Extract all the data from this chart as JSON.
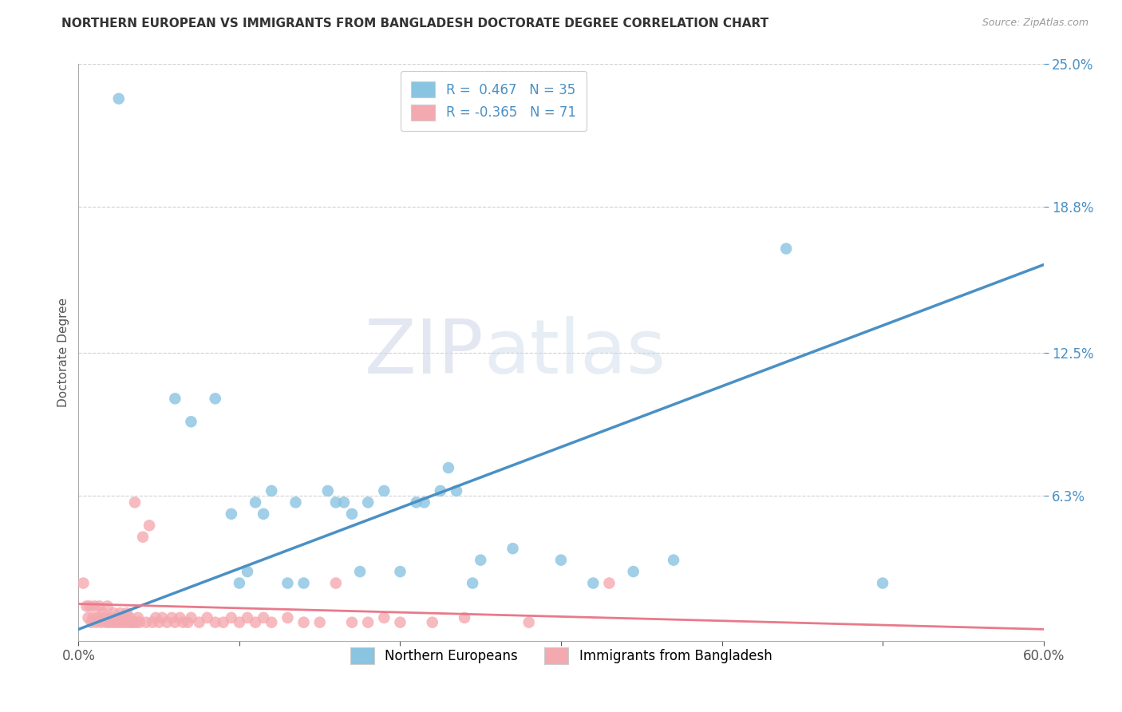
{
  "title": "NORTHERN EUROPEAN VS IMMIGRANTS FROM BANGLADESH DOCTORATE DEGREE CORRELATION CHART",
  "source": "Source: ZipAtlas.com",
  "ylabel": "Doctorate Degree",
  "xmin": 0.0,
  "xmax": 0.6,
  "ymin": 0.0,
  "ymax": 0.25,
  "R_blue": 0.467,
  "N_blue": 35,
  "R_pink": -0.365,
  "N_pink": 71,
  "blue_color": "#89c4e1",
  "pink_color": "#f4a9b0",
  "blue_line_color": "#4a90c4",
  "pink_line_color": "#e87a8a",
  "watermark_zip": "ZIP",
  "watermark_atlas": "atlas",
  "background_color": "#ffffff",
  "grid_color": "#cccccc",
  "x_legend_labels": [
    "Northern Europeans",
    "Immigrants from Bangladesh"
  ],
  "blue_scatter_x": [
    0.025,
    0.06,
    0.07,
    0.085,
    0.095,
    0.1,
    0.105,
    0.11,
    0.115,
    0.12,
    0.13,
    0.135,
    0.14,
    0.155,
    0.16,
    0.165,
    0.17,
    0.175,
    0.18,
    0.19,
    0.2,
    0.21,
    0.215,
    0.225,
    0.23,
    0.235,
    0.245,
    0.25,
    0.27,
    0.3,
    0.32,
    0.345,
    0.37,
    0.44,
    0.5
  ],
  "blue_scatter_y": [
    0.235,
    0.105,
    0.095,
    0.105,
    0.055,
    0.025,
    0.03,
    0.06,
    0.055,
    0.065,
    0.025,
    0.06,
    0.025,
    0.065,
    0.06,
    0.06,
    0.055,
    0.03,
    0.06,
    0.065,
    0.03,
    0.06,
    0.06,
    0.065,
    0.075,
    0.065,
    0.025,
    0.035,
    0.04,
    0.035,
    0.025,
    0.03,
    0.035,
    0.17,
    0.025
  ],
  "pink_scatter_x": [
    0.003,
    0.005,
    0.006,
    0.007,
    0.008,
    0.009,
    0.01,
    0.011,
    0.012,
    0.013,
    0.014,
    0.015,
    0.016,
    0.017,
    0.018,
    0.019,
    0.02,
    0.021,
    0.022,
    0.023,
    0.024,
    0.025,
    0.026,
    0.027,
    0.028,
    0.029,
    0.03,
    0.031,
    0.032,
    0.033,
    0.034,
    0.035,
    0.036,
    0.037,
    0.038,
    0.04,
    0.042,
    0.044,
    0.046,
    0.048,
    0.05,
    0.052,
    0.055,
    0.058,
    0.06,
    0.063,
    0.065,
    0.068,
    0.07,
    0.075,
    0.08,
    0.085,
    0.09,
    0.095,
    0.1,
    0.105,
    0.11,
    0.115,
    0.12,
    0.13,
    0.14,
    0.15,
    0.16,
    0.17,
    0.18,
    0.19,
    0.2,
    0.22,
    0.24,
    0.28,
    0.33
  ],
  "pink_scatter_y": [
    0.025,
    0.015,
    0.01,
    0.015,
    0.008,
    0.01,
    0.015,
    0.008,
    0.01,
    0.015,
    0.008,
    0.012,
    0.01,
    0.008,
    0.015,
    0.008,
    0.01,
    0.008,
    0.012,
    0.008,
    0.01,
    0.008,
    0.012,
    0.008,
    0.01,
    0.008,
    0.012,
    0.008,
    0.01,
    0.008,
    0.008,
    0.06,
    0.008,
    0.01,
    0.008,
    0.045,
    0.008,
    0.05,
    0.008,
    0.01,
    0.008,
    0.01,
    0.008,
    0.01,
    0.008,
    0.01,
    0.008,
    0.008,
    0.01,
    0.008,
    0.01,
    0.008,
    0.008,
    0.01,
    0.008,
    0.01,
    0.008,
    0.01,
    0.008,
    0.01,
    0.008,
    0.008,
    0.025,
    0.008,
    0.008,
    0.01,
    0.008,
    0.008,
    0.01,
    0.008,
    0.025
  ],
  "blue_line_x0": 0.0,
  "blue_line_y0": 0.005,
  "blue_line_x1": 0.6,
  "blue_line_y1": 0.163,
  "pink_line_x0": 0.0,
  "pink_line_y0": 0.016,
  "pink_line_x1": 0.6,
  "pink_line_y1": 0.005
}
